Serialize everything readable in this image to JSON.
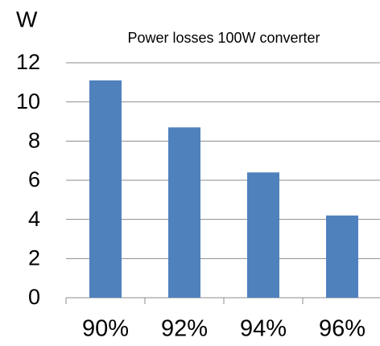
{
  "chart_data": {
    "type": "bar",
    "title": "Power losses 100W converter",
    "y_label": "W",
    "categories": [
      "90%",
      "92%",
      "94%",
      "96%"
    ],
    "values": [
      11.1,
      8.7,
      6.4,
      4.2
    ],
    "color": "#4f81bd",
    "ylim": [
      0,
      12
    ],
    "yticks": [
      0,
      2,
      4,
      6,
      8,
      10,
      12
    ],
    "grid": true
  }
}
